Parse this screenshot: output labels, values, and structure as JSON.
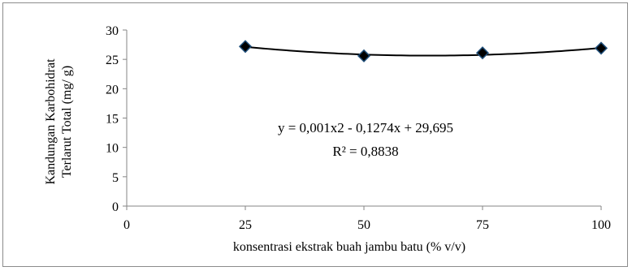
{
  "chart_data": {
    "type": "scatter",
    "xlabel": "konsentrasi ekstrak  buah jambu batu (% v/v)",
    "ylabel_lines": [
      "Kandungan Karbohidrat",
      "Terlarut Total (mg/ g)"
    ],
    "xlim": [
      0,
      100
    ],
    "ylim": [
      0,
      30
    ],
    "x_ticks": [
      "0",
      "25",
      "50",
      "75",
      "100"
    ],
    "y_ticks": [
      "0",
      "5",
      "10",
      "15",
      "20",
      "25",
      "30"
    ],
    "series": [
      {
        "x": [
          25,
          50,
          75,
          100
        ],
        "y": [
          27.2,
          25.6,
          26.1,
          26.9
        ],
        "marker": "diamond",
        "marker_color": "#000000",
        "marker_edge_color": "#1f4e79"
      }
    ],
    "trendline": {
      "type": "polynomial",
      "order": 2,
      "equation": "y = 0,001x2 - 0,1274x + 29,695",
      "r_squared": "R² = 0,8838",
      "coefficients": [
        0.001,
        -0.1274,
        29.695
      ],
      "x_range": [
        25,
        100
      ],
      "color": "#000000"
    },
    "grid": false,
    "legend": "none"
  }
}
